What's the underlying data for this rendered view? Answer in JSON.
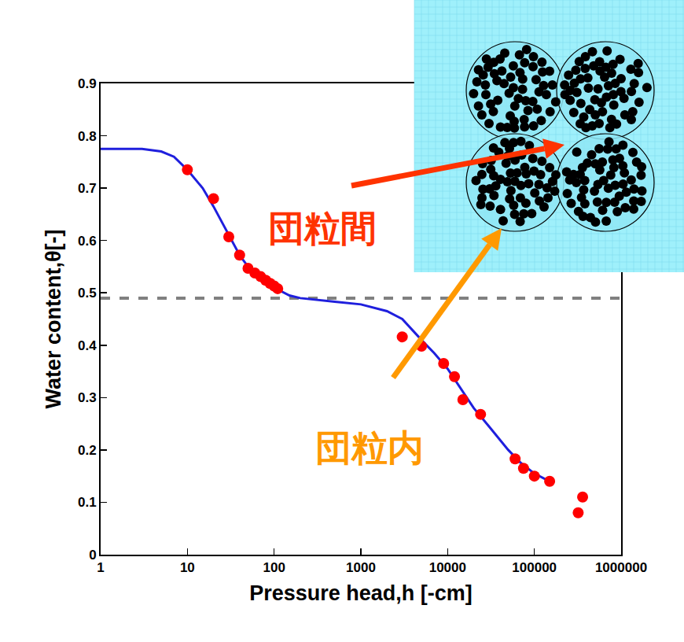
{
  "chart_data": {
    "type": "scatter",
    "xlabel": "Pressure head,h [-cm]",
    "ylabel": "Water content,θ[-]",
    "log": "x",
    "grid": false,
    "xlim": [
      1,
      1000000
    ],
    "ylim": [
      0,
      0.9
    ],
    "xticks": [
      1,
      10,
      100,
      1000,
      10000,
      100000,
      1000000
    ],
    "yticks": [
      0,
      0.1,
      0.2,
      0.3,
      0.4,
      0.5,
      0.6,
      0.7,
      0.8,
      0.9
    ],
    "series": [
      {
        "type": "line",
        "color": "#808080",
        "line_style": "dash",
        "x": [
          1,
          1000000
        ],
        "values": [
          0.49,
          0.49
        ]
      },
      {
        "type": "line",
        "color": "#1f1fdd",
        "line_style": "solid",
        "x": [
          1,
          3,
          5,
          7,
          10,
          15,
          20,
          30,
          40,
          50,
          70,
          100,
          150,
          200,
          500,
          1000,
          2000,
          3000,
          5000,
          7000,
          10000,
          15000,
          20000,
          30000,
          50000,
          70000,
          100000,
          150000
        ],
        "values": [
          0.775,
          0.775,
          0.77,
          0.76,
          0.735,
          0.7,
          0.665,
          0.61,
          0.572,
          0.55,
          0.53,
          0.51,
          0.495,
          0.49,
          0.483,
          0.478,
          0.465,
          0.45,
          0.41,
          0.385,
          0.355,
          0.31,
          0.28,
          0.245,
          0.2,
          0.175,
          0.155,
          0.14
        ]
      },
      {
        "type": "scatter",
        "color": "#ff0000",
        "marker": "circle",
        "x": [
          10,
          20,
          30,
          40,
          50,
          60,
          70,
          80,
          90,
          100,
          110,
          3000,
          5000,
          9000,
          12000,
          15000,
          24000,
          60000,
          75000,
          100000,
          150000,
          320000,
          360000
        ],
        "values": [
          0.735,
          0.68,
          0.607,
          0.572,
          0.547,
          0.538,
          0.531,
          0.524,
          0.518,
          0.513,
          0.508,
          0.416,
          0.398,
          0.365,
          0.34,
          0.296,
          0.268,
          0.183,
          0.165,
          0.15,
          0.14,
          0.08,
          0.11
        ]
      }
    ],
    "annotations": [
      {
        "text": "団粒間",
        "color": "#ff3300"
      },
      {
        "text": "団粒内",
        "color": "#ff9900"
      }
    ]
  }
}
